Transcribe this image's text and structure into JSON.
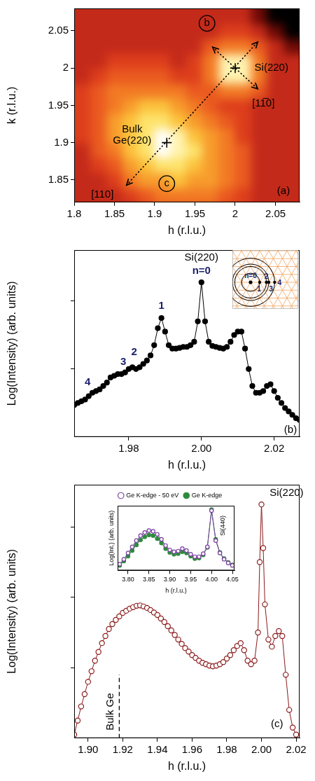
{
  "chart_data": [
    {
      "type": "heatmap",
      "x_label": "h (r.l.u.)",
      "y_label": "k (r.l.u.)",
      "xlim": [
        1.8,
        2.08
      ],
      "xticks": [
        1.8,
        1.85,
        1.9,
        1.95,
        2,
        2.05
      ],
      "ylim": [
        1.82,
        2.08
      ],
      "yticks": [
        1.85,
        1.9,
        1.95,
        2,
        2.05
      ],
      "grid": false,
      "x_edges": [
        1.8,
        1.82,
        1.84,
        1.86,
        1.88,
        1.9,
        1.92,
        1.94,
        1.96,
        1.98,
        2,
        2.02,
        2.04,
        2.06,
        2.08
      ],
      "y_edges": [
        1.8,
        1.82,
        1.84,
        1.86,
        1.88,
        1.9,
        1.92,
        1.94,
        1.96,
        1.98,
        2,
        2.02,
        2.04,
        2.06,
        2.08
      ],
      "cells": [
        [
          2,
          2,
          2,
          2,
          3,
          4,
          4,
          4,
          4,
          3,
          3,
          2,
          2,
          2
        ],
        [
          2,
          2,
          2,
          3,
          4,
          5,
          5,
          5,
          5,
          4,
          3,
          2,
          2,
          2
        ],
        [
          2,
          2,
          3,
          5,
          6,
          6,
          7,
          6,
          6,
          5,
          4,
          2,
          2,
          2
        ],
        [
          2,
          3,
          4,
          6,
          7,
          8,
          8,
          7,
          6,
          5,
          4,
          2,
          2,
          2
        ],
        [
          2,
          4,
          5,
          7,
          8,
          10,
          9,
          8,
          6,
          5,
          4,
          2,
          2,
          2
        ],
        [
          3,
          4,
          6,
          7,
          8,
          10,
          9,
          7,
          6,
          5,
          3,
          2,
          2,
          2
        ],
        [
          3,
          4,
          6,
          7,
          8,
          8,
          7,
          6,
          5,
          4,
          3,
          2,
          2,
          2
        ],
        [
          3,
          4,
          5,
          6,
          7,
          7,
          6,
          5,
          4,
          3,
          3,
          2,
          2,
          2
        ],
        [
          3,
          4,
          5,
          5,
          5,
          5,
          5,
          4,
          4,
          5,
          5,
          4,
          2,
          2
        ],
        [
          2,
          3,
          4,
          4,
          4,
          4,
          3,
          3,
          5,
          9,
          9,
          5,
          2,
          2
        ],
        [
          2,
          2,
          3,
          3,
          3,
          3,
          2,
          3,
          5,
          9,
          9,
          5,
          2,
          2
        ],
        [
          2,
          2,
          2,
          2,
          2,
          2,
          2,
          2,
          4,
          5,
          5,
          4,
          2,
          1
        ],
        [
          2,
          2,
          2,
          2,
          2,
          2,
          2,
          2,
          2,
          3,
          3,
          2,
          1,
          0
        ],
        [
          2,
          2,
          2,
          2,
          2,
          2,
          2,
          2,
          2,
          2,
          2,
          1,
          0,
          0
        ]
      ],
      "markers": {
        "marker": "cross",
        "x": [
          2.0,
          1.915
        ],
        "y": [
          2.0,
          1.9
        ]
      },
      "arrows": [
        {
          "from": [
            1.865,
            1.843
          ],
          "to": [
            2.028,
            2.035
          ],
          "line_style": "dotted"
        },
        {
          "from": [
            1.972,
            2.028
          ],
          "to": [
            2.028,
            1.972
          ],
          "line_style": "dotted"
        }
      ],
      "annotations": [
        {
          "text": "Si(220)",
          "x": 2.045,
          "y": 2.0
        },
        {
          "text": "Bulk\nGe(220)",
          "x": 1.872,
          "y": 1.91
        },
        {
          "text": "[11̅0]",
          "x": 2.035,
          "y": 1.952
        },
        {
          "text": "[110]",
          "x": 1.835,
          "y": 1.83
        },
        {
          "text": "b",
          "x": 1.965,
          "y": 2.06,
          "marker": "circle"
        },
        {
          "text": "c",
          "x": 1.915,
          "y": 1.845,
          "marker": "circle"
        },
        {
          "text": "(a)",
          "x": 2.06,
          "y": 1.835
        }
      ]
    },
    {
      "type": "line",
      "x_label": "h (r.l.u.)",
      "y_label": "Log(Intensity) (arb. units)",
      "xlim": [
        1.965,
        2.027
      ],
      "xticks": [
        1.98,
        {
          "value": 2,
          "label": "2.00"
        },
        2.02
      ],
      "ylim": [
        0,
        5.5
      ],
      "yticks": [
        2,
        4
      ],
      "tick_labels": "x",
      "grid": false,
      "color": "#000000",
      "marker": "circle",
      "x": [
        1.965,
        1.966,
        1.967,
        1.968,
        1.969,
        1.97,
        1.971,
        1.972,
        1.973,
        1.974,
        1.975,
        1.976,
        1.977,
        1.978,
        1.979,
        1.98,
        1.981,
        1.982,
        1.983,
        1.984,
        1.985,
        1.986,
        1.987,
        1.988,
        1.989,
        1.99,
        1.991,
        1.992,
        1.993,
        1.994,
        1.995,
        1.996,
        1.997,
        1.998,
        1.999,
        2.0,
        2.001,
        2.002,
        2.003,
        2.004,
        2.005,
        2.006,
        2.007,
        2.008,
        2.009,
        2.01,
        2.011,
        2.012,
        2.013,
        2.014,
        2.015,
        2.016,
        2.017,
        2.018,
        2.019,
        2.02,
        2.021,
        2.022,
        2.023,
        2.024,
        2.025,
        2.026,
        2.027
      ],
      "values": [
        0.94,
        1.0,
        1.05,
        1.1,
        1.2,
        1.3,
        1.35,
        1.4,
        1.5,
        1.6,
        1.75,
        1.8,
        1.85,
        1.85,
        1.9,
        2.0,
        2.05,
        2.0,
        2.05,
        2.15,
        2.25,
        2.4,
        2.7,
        3.2,
        3.5,
        3.1,
        2.7,
        2.6,
        2.6,
        2.62,
        2.65,
        2.65,
        2.7,
        2.8,
        3.4,
        4.55,
        3.4,
        2.8,
        2.68,
        2.65,
        2.62,
        2.6,
        2.65,
        2.8,
        3.0,
        3.1,
        3.1,
        2.6,
        2.0,
        1.5,
        1.3,
        1.3,
        1.35,
        1.5,
        1.55,
        1.35,
        1.15,
        1.0,
        0.85,
        0.75,
        0.65,
        0.55,
        0.5
      ],
      "annotations": [
        {
          "text": "Si(220)",
          "x": 2.0,
          "y": 5.27
        },
        {
          "text": "n=0",
          "x": 2.0,
          "y": 4.88,
          "color": "#1b1f6b"
        },
        {
          "text": "1",
          "x": 1.989,
          "y": 3.85,
          "color": "#1b1f6b"
        },
        {
          "text": "2",
          "x": 1.9815,
          "y": 2.5,
          "color": "#1b1f6b"
        },
        {
          "text": "3",
          "x": 1.9785,
          "y": 2.2,
          "color": "#1b1f6b"
        },
        {
          "text": "4",
          "x": 1.9687,
          "y": 1.6,
          "color": "#1b1f6b"
        },
        {
          "text": "(b)",
          "x": 2.0245,
          "y": 0.2
        }
      ],
      "inset": {
        "type": "diagram",
        "labels": [
          "n=0",
          "1",
          "2",
          "3",
          "4"
        ]
      }
    },
    {
      "type": "line",
      "x_label": "h (r.l.u.)",
      "y_label": "Log(Intensity) (arb. units)",
      "xlim": [
        1.892,
        2.022
      ],
      "xticks": [
        {
          "value": 1.9,
          "label": "1.90"
        },
        1.92,
        1.94,
        1.96,
        1.98,
        {
          "value": 2,
          "label": "2.00"
        },
        2.02
      ],
      "ylim": [
        0,
        7.2
      ],
      "yticks": [
        2,
        4,
        6
      ],
      "tick_labels": "x",
      "grid": false,
      "color": "#8b1a1a",
      "marker": "circle-open",
      "x": [
        1.892,
        1.894,
        1.896,
        1.898,
        1.9,
        1.902,
        1.904,
        1.906,
        1.908,
        1.91,
        1.912,
        1.914,
        1.916,
        1.918,
        1.92,
        1.922,
        1.924,
        1.926,
        1.928,
        1.93,
        1.932,
        1.934,
        1.936,
        1.938,
        1.94,
        1.942,
        1.944,
        1.946,
        1.948,
        1.95,
        1.952,
        1.954,
        1.956,
        1.958,
        1.96,
        1.962,
        1.964,
        1.966,
        1.968,
        1.97,
        1.972,
        1.974,
        1.976,
        1.978,
        1.98,
        1.982,
        1.984,
        1.986,
        1.988,
        1.99,
        1.992,
        1.994,
        1.996,
        1.998,
        1.999,
        2.0,
        2.001,
        2.002,
        2.004,
        2.006,
        2.008,
        2.01,
        2.012,
        2.014,
        2.016,
        2.018,
        2.02
      ],
      "values": [
        0.1,
        0.5,
        0.9,
        1.25,
        1.6,
        1.9,
        2.2,
        2.45,
        2.7,
        2.9,
        3.1,
        3.24,
        3.36,
        3.46,
        3.56,
        3.62,
        3.68,
        3.72,
        3.76,
        3.77,
        3.74,
        3.7,
        3.64,
        3.57,
        3.5,
        3.4,
        3.3,
        3.18,
        3.06,
        2.93,
        2.8,
        2.68,
        2.56,
        2.46,
        2.36,
        2.28,
        2.2,
        2.14,
        2.1,
        2.06,
        2.04,
        2.06,
        2.1,
        2.16,
        2.26,
        2.36,
        2.5,
        2.62,
        2.7,
        2.5,
        2.2,
        2.1,
        2.2,
        3.0,
        5.0,
        6.64,
        5.4,
        3.8,
        2.8,
        2.6,
        2.9,
        3.04,
        2.9,
        1.8,
        0.8,
        0.3,
        0.1
      ],
      "reference_line": {
        "x": 1.918,
        "y": [
          0,
          1.8
        ],
        "line_style": "dashed"
      },
      "annotations": [
        {
          "text": "Si(220)",
          "x": 2.0145,
          "y": 6.97
        },
        {
          "text": "Bulk Ge",
          "x": 1.913,
          "y": 0.75,
          "orientation": "vertical"
        },
        {
          "text": "(c)",
          "x": 2.009,
          "y": 0.4
        }
      ],
      "inset": {
        "type": "line",
        "x_label": "h (r.l.u.)",
        "y_label": "Log(Int.) (arb. units)",
        "xlim": [
          3.775,
          4.055
        ],
        "xticks": [
          {
            "value": 3.8,
            "label": "3.80"
          },
          3.85,
          {
            "value": 3.9,
            "label": "3.90"
          },
          3.95,
          {
            "value": 4,
            "label": "4.00"
          },
          4.05
        ],
        "ylim": [
          0,
          5.2
        ],
        "tick_labels": "x",
        "grid": false,
        "legend": "top",
        "x": [
          3.78,
          3.79,
          3.8,
          3.81,
          3.82,
          3.83,
          3.84,
          3.85,
          3.86,
          3.87,
          3.88,
          3.89,
          3.9,
          3.91,
          3.92,
          3.93,
          3.94,
          3.95,
          3.96,
          3.97,
          3.98,
          3.99,
          4.0,
          4.01,
          4.02,
          4.03,
          4.04,
          4.05
        ],
        "series": [
          {
            "name": "Ge K-edge - 50 eV",
            "color": "#7b3fa0",
            "marker": "circle-open",
            "values": [
              0.5,
              0.9,
              1.4,
              1.9,
              2.4,
              2.8,
              3.05,
              3.2,
              3.15,
              2.9,
              2.5,
              2.0,
              1.65,
              1.5,
              1.55,
              1.75,
              1.6,
              1.3,
              1.1,
              1.1,
              1.35,
              1.9,
              4.8,
              2.4,
              1.4,
              0.9,
              0.6,
              0.4
            ]
          },
          {
            "name": "Ge K-edge",
            "color": "#2e8b3e",
            "marker": "circle",
            "values": [
              0.4,
              0.75,
              1.15,
              1.6,
              2.05,
              2.45,
              2.7,
              2.85,
              2.8,
              2.55,
              2.2,
              1.75,
              1.45,
              1.3,
              1.35,
              1.5,
              1.4,
              1.15,
              0.95,
              1.0,
              1.25,
              1.85,
              4.9,
              2.5,
              1.45,
              0.95,
              0.65,
              0.45
            ]
          }
        ],
        "annotations": [
          {
            "text": "Si(440)",
            "x": 4.027,
            "y": 3.6,
            "orientation": "vertical"
          }
        ]
      }
    }
  ]
}
